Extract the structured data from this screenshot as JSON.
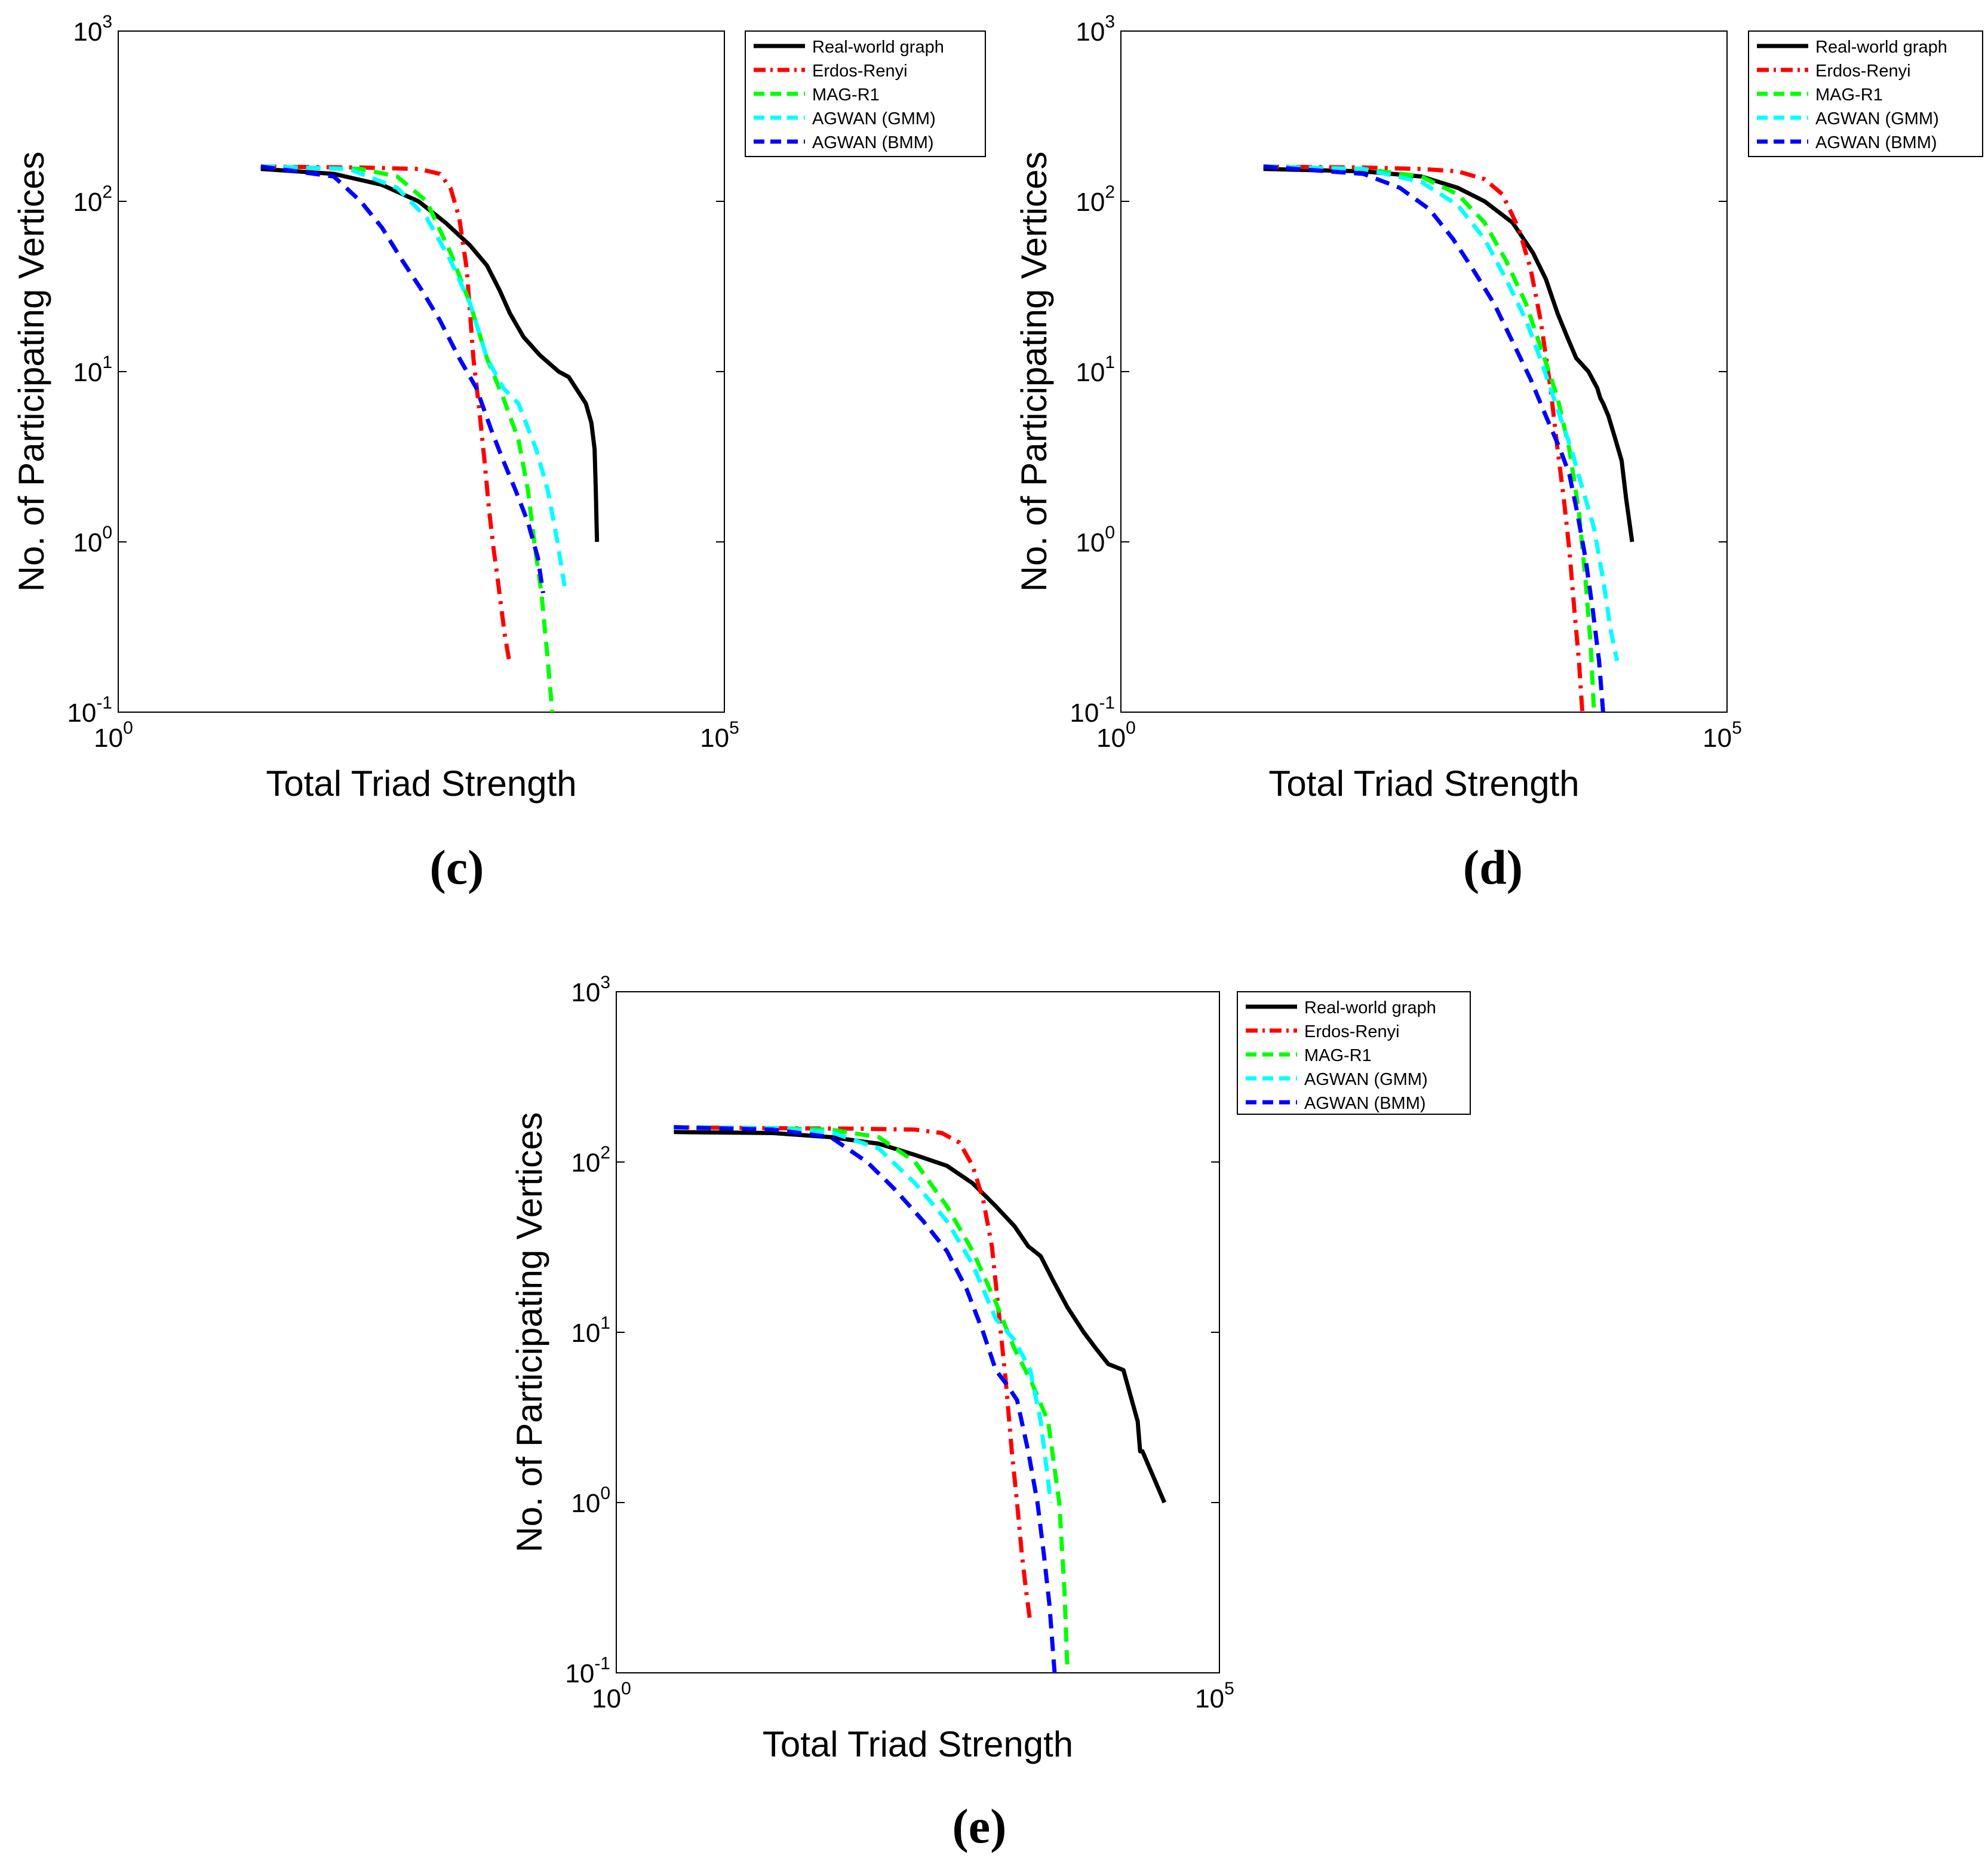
{
  "colors": {
    "real": "#000000",
    "erdos": "#ff0000",
    "mag": "#00ff00",
    "gmm": "#00ffff",
    "bmm": "#0000ff"
  },
  "chart_data": [
    {
      "panel": "c",
      "caption": "(c)",
      "type": "line",
      "xscale": "log",
      "yscale": "log",
      "xlim": [
        1,
        100000
      ],
      "ylim": [
        0.1,
        1000
      ],
      "xlabel": "Total Triad Strength",
      "ylabel": "No. of Participating Vertices",
      "xticks": [
        "10^0",
        "10^5"
      ],
      "yticks": [
        "10^-1",
        "10^0",
        "10^1",
        "10^2",
        "10^3"
      ],
      "grid": false,
      "legend": {
        "position": "outside-top-right",
        "entries": [
          "Real-world graph",
          "Erdos-Renyi",
          "MAG-R1",
          "AGWAN (GMM)",
          "AGWAN (BMM)"
        ]
      },
      "series": [
        {
          "name": "Real-world graph",
          "color": "real",
          "style": "solid",
          "x": [
            15,
            60,
            150,
            300,
            500,
            800,
            1100,
            1400,
            1700,
            2200,
            3000,
            4300,
            5200,
            7200,
            8000,
            8500,
            8700,
            8900
          ],
          "y": [
            155,
            145,
            125,
            100,
            75,
            55,
            42,
            30,
            22,
            16,
            12.5,
            10,
            9.3,
            6.5,
            5,
            3.5,
            2,
            1
          ]
        },
        {
          "name": "Erdos-Renyi",
          "color": "erdos",
          "style": "dashdot",
          "x": [
            15,
            100,
            300,
            450,
            550,
            650,
            750,
            850,
            950,
            1050,
            1150,
            1250,
            1350,
            1450,
            1550,
            1680
          ],
          "y": [
            160,
            158,
            155,
            145,
            120,
            80,
            40,
            12,
            6,
            3,
            1.5,
            0.9,
            0.6,
            0.4,
            0.28,
            0.2
          ]
        },
        {
          "name": "MAG-R1",
          "color": "mag",
          "style": "dashed",
          "x": [
            15,
            100,
            200,
            350,
            550,
            800,
            1100,
            1500,
            2000,
            2400,
            2700,
            3100,
            3500,
            3800
          ],
          "y": [
            160,
            155,
            140,
            100,
            50,
            25,
            12,
            7,
            4,
            2,
            1,
            0.5,
            0.2,
            0.1
          ]
        },
        {
          "name": "AGWAN (GMM)",
          "color": "gmm",
          "style": "dashed",
          "x": [
            15,
            80,
            200,
            350,
            550,
            800,
            1100,
            1500,
            2000,
            2800,
            3500,
            4200,
            4800
          ],
          "y": [
            160,
            155,
            120,
            80,
            45,
            25,
            12,
            8,
            6.5,
            3.5,
            2,
            1,
            0.55
          ]
        },
        {
          "name": "AGWAN (BMM)",
          "color": "bmm",
          "style": "dashed",
          "x": [
            15,
            60,
            100,
            150,
            220,
            320,
            450,
            650,
            900,
            1200,
            1500,
            1900,
            2400,
            2900,
            3200
          ],
          "y": [
            160,
            140,
            100,
            70,
            45,
            30,
            20,
            12,
            8,
            4.5,
            3,
            2,
            1.3,
            0.8,
            0.5
          ]
        }
      ]
    },
    {
      "panel": "d",
      "caption": "(d)",
      "type": "line",
      "xscale": "log",
      "yscale": "log",
      "xlim": [
        1,
        100000
      ],
      "ylim": [
        0.1,
        1000
      ],
      "xlabel": "Total Triad Strength",
      "ylabel": "No. of Participating Vertices",
      "xticks": [
        "10^0",
        "10^5"
      ],
      "yticks": [
        "10^-1",
        "10^0",
        "10^1",
        "10^2",
        "10^3"
      ],
      "grid": false,
      "legend": {
        "position": "outside-top-right",
        "entries": [
          "Real-world graph",
          "Erdos-Renyi",
          "MAG-R1",
          "AGWAN (GMM)",
          "AGWAN (BMM)"
        ]
      },
      "series": [
        {
          "name": "Real-world graph",
          "color": "real",
          "style": "solid",
          "x": [
            15,
            100,
            300,
            600,
            1000,
            1700,
            2500,
            3200,
            4000,
            4800,
            5700,
            7200,
            8500,
            9000,
            9500,
            10500,
            12000,
            13500,
            14700,
            16500
          ],
          "y": [
            155,
            150,
            140,
            120,
            100,
            75,
            50,
            35,
            22,
            16,
            12,
            10,
            8,
            7,
            6.5,
            5.5,
            4,
            3,
            1.8,
            1
          ]
        },
        {
          "name": "Erdos-Renyi",
          "color": "erdos",
          "style": "dashdot",
          "x": [
            15,
            100,
            300,
            600,
            1000,
            1400,
            1900,
            2400,
            2900,
            3500,
            4000,
            4500,
            5000,
            5500,
            6000,
            6400
          ],
          "y": [
            160,
            158,
            155,
            150,
            135,
            110,
            70,
            40,
            20,
            8,
            3.5,
            1.8,
            0.9,
            0.4,
            0.2,
            0.1
          ]
        },
        {
          "name": "MAG-R1",
          "color": "mag",
          "style": "dashed",
          "x": [
            15,
            100,
            300,
            600,
            1000,
            1500,
            2200,
            3000,
            4000,
            5000,
            6000,
            6800,
            7500,
            8000
          ],
          "y": [
            160,
            155,
            140,
            110,
            75,
            45,
            25,
            13,
            7,
            3.5,
            1.5,
            0.6,
            0.25,
            0.1
          ]
        },
        {
          "name": "AGWAN (GMM)",
          "color": "gmm",
          "style": "dashed",
          "x": [
            15,
            100,
            300,
            600,
            1000,
            1500,
            2200,
            3000,
            4000,
            5200,
            6500,
            8000,
            9500,
            11000,
            12400
          ],
          "y": [
            160,
            155,
            130,
            95,
            60,
            35,
            20,
            11,
            6,
            3.5,
            2,
            1.2,
            0.6,
            0.3,
            0.2
          ]
        },
        {
          "name": "AGWAN (BMM)",
          "color": "bmm",
          "style": "dashed",
          "x": [
            15,
            100,
            200,
            350,
            550,
            800,
            1200,
            1700,
            2400,
            3200,
            4200,
            5000,
            5800,
            6800,
            7800,
            8800,
            9500
          ],
          "y": [
            160,
            145,
            120,
            90,
            60,
            40,
            25,
            15,
            9,
            5.5,
            3.5,
            2.5,
            1.5,
            0.8,
            0.4,
            0.2,
            0.1
          ]
        }
      ]
    },
    {
      "panel": "e",
      "caption": "(e)",
      "type": "line",
      "xscale": "log",
      "yscale": "log",
      "xlim": [
        1,
        100000
      ],
      "ylim": [
        0.1,
        1000
      ],
      "xlabel": "Total Triad Strength",
      "ylabel": "No. of Participating Vertices",
      "xticks": [
        "10^0",
        "10^5"
      ],
      "yticks": [
        "10^-1",
        "10^0",
        "10^1",
        "10^2",
        "10^3"
      ],
      "grid": false,
      "legend": {
        "position": "outside-top-right",
        "entries": [
          "Real-world graph",
          "Erdos-Renyi",
          "MAG-R1",
          "AGWAN (GMM)",
          "AGWAN (BMM)"
        ]
      },
      "series": [
        {
          "name": "Real-world graph",
          "color": "real",
          "style": "solid",
          "x": [
            3,
            20,
            60,
            150,
            300,
            550,
            900,
            1400,
            2000,
            2600,
            3300,
            4200,
            5500,
            7500,
            9500,
            12000,
            16000,
            21000,
            22000,
            23000,
            35000
          ],
          "y": [
            150,
            148,
            140,
            128,
            110,
            95,
            75,
            55,
            42,
            32,
            28,
            20,
            14,
            10,
            8,
            6.5,
            6,
            3,
            2,
            2,
            1
          ]
        },
        {
          "name": "Erdos-Renyi",
          "color": "erdos",
          "style": "dashdot",
          "x": [
            3,
            20,
            100,
            300,
            500,
            700,
            900,
            1100,
            1300,
            1500,
            1700,
            1900,
            2100,
            2300,
            2500,
            2700
          ],
          "y": [
            160,
            158,
            157,
            155,
            148,
            130,
            95,
            60,
            32,
            12,
            5,
            2,
            1,
            0.5,
            0.3,
            0.2
          ]
        },
        {
          "name": "MAG-R1",
          "color": "mag",
          "style": "dashed",
          "x": [
            3,
            20,
            60,
            150,
            300,
            550,
            900,
            1400,
            2000,
            2800,
            3800,
            4700,
            5200,
            5500
          ],
          "y": [
            160,
            158,
            155,
            140,
            100,
            55,
            30,
            15,
            8,
            5,
            3,
            1,
            0.3,
            0.1
          ]
        },
        {
          "name": "AGWAN (GMM)",
          "color": "gmm",
          "style": "dashed",
          "x": [
            3,
            20,
            60,
            150,
            300,
            550,
            900,
            1400,
            2000,
            2700,
            3300,
            4000
          ],
          "y": [
            160,
            158,
            150,
            120,
            75,
            45,
            25,
            12,
            9,
            6,
            3,
            1
          ]
        },
        {
          "name": "AGWAN (BMM)",
          "color": "bmm",
          "style": "dashed",
          "x": [
            3,
            20,
            60,
            120,
            200,
            350,
            550,
            800,
            1100,
            1400,
            1700,
            2100,
            2600,
            3100,
            3500,
            3900,
            4300
          ],
          "y": [
            160,
            155,
            140,
            100,
            70,
            45,
            30,
            18,
            10,
            6,
            5,
            4,
            2,
            1,
            0.5,
            0.25,
            0.1
          ]
        }
      ]
    }
  ]
}
